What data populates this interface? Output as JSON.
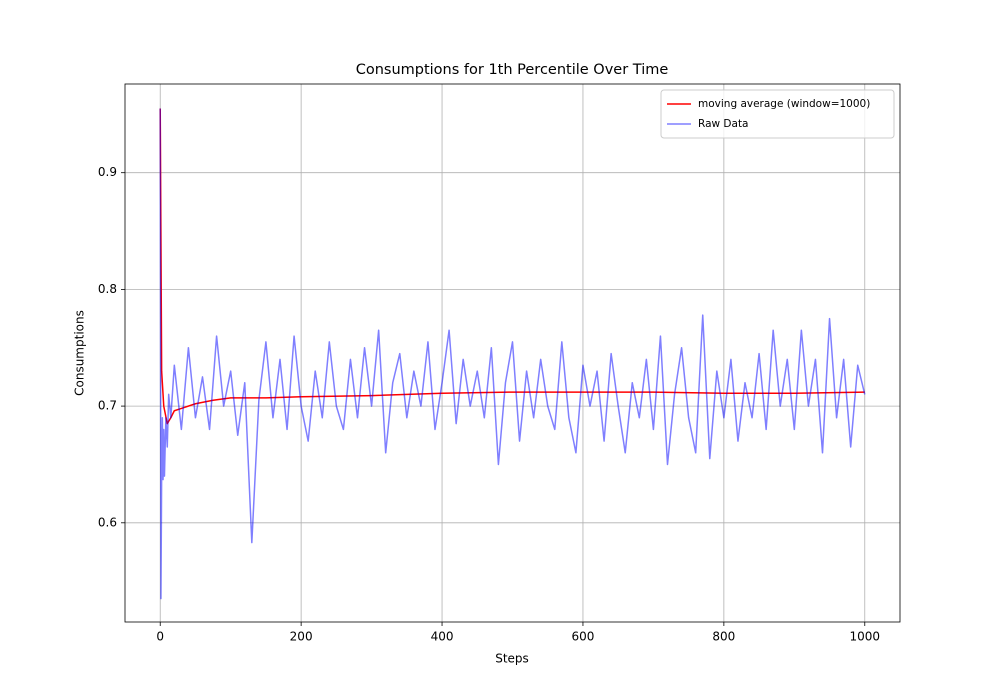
{
  "chart_data": {
    "type": "line",
    "title": "Consumptions for 1th Percentile Over Time",
    "x_label": "Steps",
    "y_label": "Consumptions",
    "xlim": [
      -50,
      1050
    ],
    "ylim": [
      0.515,
      0.976
    ],
    "xticks": [
      0,
      200,
      400,
      600,
      800,
      1000
    ],
    "yticks": [
      0.6,
      0.7,
      0.8,
      0.9
    ],
    "grid": true,
    "legend": "upper right",
    "series": [
      {
        "name": "moving average (window=1000)",
        "color": "#ff0000",
        "x": [
          0,
          2,
          5,
          10,
          15,
          20,
          30,
          50,
          75,
          100,
          150,
          200,
          300,
          400,
          500,
          600,
          700,
          800,
          900,
          1000
        ],
        "values": [
          0.955,
          0.73,
          0.7,
          0.685,
          0.69,
          0.696,
          0.698,
          0.702,
          0.705,
          0.707,
          0.707,
          0.708,
          0.709,
          0.711,
          0.712,
          0.712,
          0.712,
          0.711,
          0.711,
          0.712
        ]
      },
      {
        "name": "Raw Data",
        "color": "#0000ff",
        "x": [
          0,
          1,
          2,
          3,
          4,
          5,
          6,
          8,
          10,
          12,
          15,
          20,
          30,
          40,
          50,
          60,
          70,
          80,
          90,
          100,
          110,
          120,
          130,
          140,
          150,
          160,
          170,
          180,
          190,
          200,
          210,
          220,
          230,
          240,
          250,
          260,
          270,
          280,
          290,
          300,
          310,
          320,
          330,
          340,
          350,
          360,
          370,
          380,
          390,
          400,
          410,
          420,
          430,
          440,
          450,
          460,
          470,
          480,
          490,
          500,
          510,
          520,
          530,
          540,
          550,
          560,
          570,
          580,
          590,
          600,
          610,
          620,
          630,
          640,
          650,
          660,
          670,
          680,
          690,
          700,
          710,
          720,
          730,
          740,
          750,
          760,
          770,
          780,
          790,
          800,
          810,
          820,
          830,
          840,
          850,
          860,
          870,
          880,
          890,
          900,
          910,
          920,
          930,
          940,
          950,
          960,
          970,
          980,
          990,
          1000
        ],
        "values": [
          0.955,
          0.535,
          0.64,
          0.69,
          0.637,
          0.68,
          0.64,
          0.69,
          0.665,
          0.71,
          0.69,
          0.735,
          0.68,
          0.75,
          0.69,
          0.725,
          0.68,
          0.76,
          0.7,
          0.73,
          0.675,
          0.72,
          0.583,
          0.705,
          0.755,
          0.69,
          0.74,
          0.68,
          0.76,
          0.7,
          0.67,
          0.73,
          0.69,
          0.755,
          0.7,
          0.68,
          0.74,
          0.69,
          0.75,
          0.7,
          0.765,
          0.66,
          0.72,
          0.745,
          0.69,
          0.73,
          0.7,
          0.755,
          0.68,
          0.72,
          0.765,
          0.685,
          0.74,
          0.7,
          0.73,
          0.69,
          0.75,
          0.65,
          0.72,
          0.755,
          0.67,
          0.73,
          0.69,
          0.74,
          0.7,
          0.68,
          0.755,
          0.69,
          0.66,
          0.735,
          0.7,
          0.73,
          0.67,
          0.745,
          0.7,
          0.66,
          0.72,
          0.69,
          0.74,
          0.68,
          0.76,
          0.65,
          0.71,
          0.75,
          0.69,
          0.66,
          0.778,
          0.655,
          0.73,
          0.69,
          0.74,
          0.67,
          0.72,
          0.69,
          0.745,
          0.68,
          0.765,
          0.7,
          0.74,
          0.68,
          0.765,
          0.7,
          0.74,
          0.66,
          0.775,
          0.69,
          0.74,
          0.665,
          0.735,
          0.71
        ]
      }
    ]
  }
}
